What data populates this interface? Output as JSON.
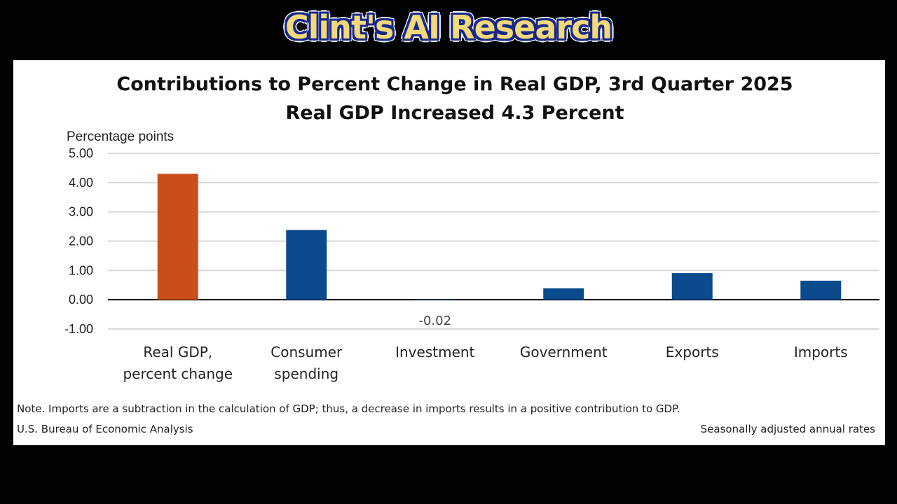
{
  "banner": {
    "text": "Clint's AI Research"
  },
  "footer": {
    "note": "Note. Imports are a subtraction in the calculation of GDP; thus, a decrease in imports results in a positive contribution to GDP.",
    "source": "U.S. Bureau of Economic Analysis",
    "rates": "Seasonally adjusted annual rates"
  },
  "chart_data": {
    "type": "bar",
    "title": "Contributions to Percent Change in Real GDP, 3rd Quarter 2025",
    "subtitle": "Real GDP Increased 4.3 Percent",
    "ylabel": "Percentage points",
    "xlabel": "",
    "ylim": [
      -1,
      5
    ],
    "yticks": [
      "5.00",
      "4.00",
      "3.00",
      "2.00",
      "1.00",
      "0.00",
      "-1.00"
    ],
    "ytick_values": [
      5,
      4,
      3,
      2,
      1,
      0,
      -1
    ],
    "grid": true,
    "categories": [
      [
        "Real GDP,",
        "percent change"
      ],
      [
        "Consumer",
        "spending"
      ],
      [
        "Investment"
      ],
      [
        "Government"
      ],
      [
        "Exports"
      ],
      [
        "Imports"
      ]
    ],
    "values": [
      4.3,
      2.38,
      -0.02,
      0.39,
      0.91,
      0.65
    ],
    "colors": [
      "#c94e19",
      "#0b4a8d",
      "#0b4a8d",
      "#0b4a8d",
      "#0b4a8d",
      "#0b4a8d"
    ],
    "data_labels": [
      {
        "index": 2,
        "text": "-0.02"
      }
    ]
  }
}
